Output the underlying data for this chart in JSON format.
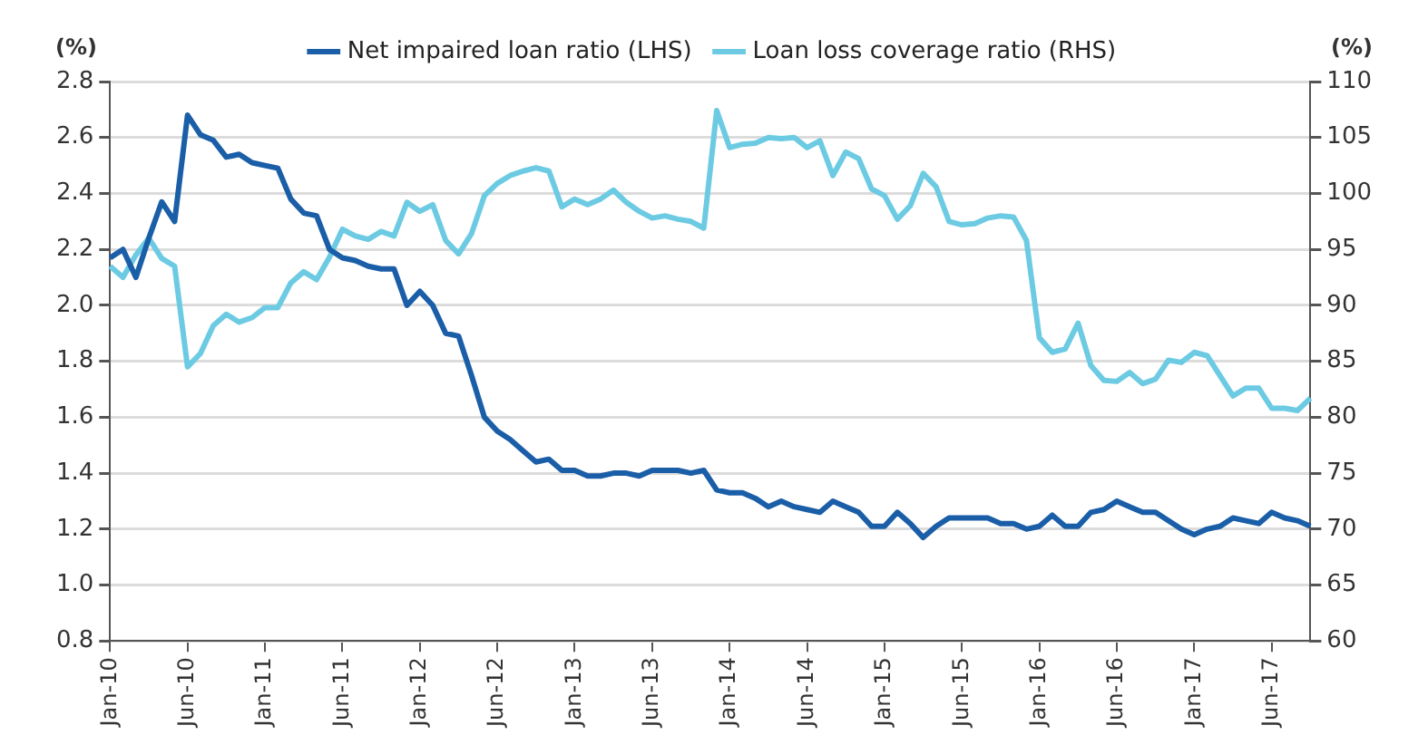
{
  "chart_data": {
    "type": "line",
    "ylabel": "(%)",
    "y2label": "(%)",
    "categories": [
      "Jan-10",
      null,
      null,
      null,
      null,
      null,
      "Jun-10",
      null,
      null,
      null,
      null,
      null,
      "Jan-11",
      null,
      null,
      null,
      null,
      null,
      "Jun-11",
      null,
      null,
      null,
      null,
      null,
      "Jan-12",
      null,
      null,
      null,
      null,
      null,
      "Jun-12",
      null,
      null,
      null,
      null,
      null,
      "Jan-13",
      null,
      null,
      null,
      null,
      null,
      "Jun-13",
      null,
      null,
      null,
      null,
      null,
      "Jan-14",
      null,
      null,
      null,
      null,
      null,
      "Jun-14",
      null,
      null,
      null,
      null,
      null,
      "Jan-15",
      null,
      null,
      null,
      null,
      null,
      "Jun-15",
      null,
      null,
      null,
      null,
      null,
      "Jan-16",
      null,
      null,
      null,
      null,
      null,
      "Jun-16",
      null,
      null,
      null,
      null,
      null,
      "Jan-17",
      null,
      null,
      null,
      null,
      null,
      "Jun-17",
      null,
      null,
      null
    ],
    "series": [
      {
        "name": "Net impaired loan ratio (LHS)",
        "color": "#1a5ea8",
        "values": [
          2.17,
          2.2,
          2.1,
          2.24,
          2.37,
          2.3,
          2.68,
          2.61,
          2.59,
          2.53,
          2.54,
          2.51,
          2.5,
          2.49,
          2.38,
          2.33,
          2.32,
          2.2,
          2.17,
          2.16,
          2.14,
          2.13,
          2.13,
          2.0,
          2.05,
          2.0,
          1.9,
          1.89,
          1.75,
          1.6,
          1.55,
          1.52,
          1.48,
          1.44,
          1.45,
          1.41,
          1.41,
          1.39,
          1.39,
          1.4,
          1.4,
          1.39,
          1.41,
          1.41,
          1.41,
          1.4,
          1.41,
          1.34,
          1.33,
          1.33,
          1.31,
          1.28,
          1.3,
          1.28,
          1.27,
          1.26,
          1.3,
          1.28,
          1.26,
          1.21,
          1.21,
          1.26,
          1.22,
          1.17,
          1.21,
          1.24,
          1.24,
          1.24,
          1.24,
          1.22,
          1.22,
          1.2,
          1.21,
          1.25,
          1.21,
          1.21,
          1.26,
          1.27,
          1.3,
          1.28,
          1.26,
          1.26,
          1.23,
          1.2,
          1.18,
          1.2,
          1.21,
          1.24,
          1.23,
          1.22,
          1.26,
          1.24,
          1.23,
          1.21
        ]
      },
      {
        "name": "Loan loss coverage ratio (RHS)",
        "color": "#6ccbe3",
        "axis": "y2",
        "values": [
          93.5,
          92.5,
          94.5,
          96,
          94.2,
          93.5,
          84.5,
          85.7,
          88.2,
          89.2,
          88.5,
          88.9,
          89.8,
          89.8,
          92,
          93,
          92.3,
          94.3,
          96.8,
          96.2,
          95.9,
          96.6,
          96.2,
          99.2,
          98.4,
          99,
          95.8,
          94.6,
          96.4,
          99.8,
          100.9,
          101.6,
          102,
          102.3,
          102,
          98.8,
          99.5,
          99,
          99.5,
          100.3,
          99.2,
          98.4,
          97.8,
          98,
          97.7,
          97.5,
          96.9,
          107.4,
          104.1,
          104.4,
          104.5,
          105,
          104.9,
          105,
          104.1,
          104.7,
          101.6,
          103.7,
          103.1,
          100.4,
          99.8,
          97.7,
          98.9,
          101.8,
          100.6,
          97.5,
          97.2,
          97.3,
          97.8,
          98,
          97.9,
          95.8,
          87.1,
          85.8,
          86.1,
          88.4,
          84.6,
          83.3,
          83.2,
          84,
          83,
          83.4,
          85.1,
          84.9,
          85.8,
          85.5,
          83.7,
          81.9,
          82.6,
          82.6,
          80.8,
          80.8,
          80.6,
          81.7
        ]
      }
    ],
    "ylim": [
      0.8,
      2.8
    ],
    "yticks": [
      0.8,
      {
        "value": 1,
        "label": "1.0"
      },
      1.2,
      1.4,
      1.6,
      1.8,
      {
        "value": 2,
        "label": "2.0"
      },
      2.2,
      2.4,
      2.6,
      2.8
    ],
    "y2lim": [
      60,
      110
    ],
    "y2ticks": [
      60,
      65,
      70,
      75,
      80,
      85,
      90,
      95,
      100,
      105,
      110
    ],
    "grid": "y",
    "legend": "top",
    "marker": "none",
    "line_style": "solid"
  }
}
